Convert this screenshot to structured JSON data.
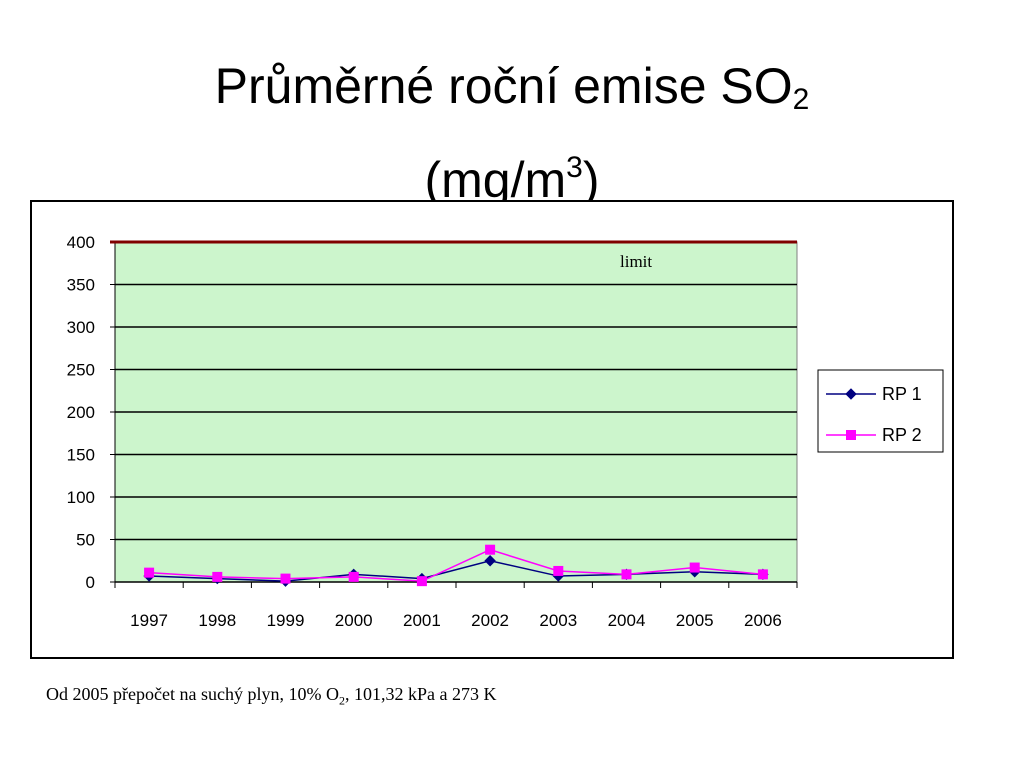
{
  "title": {
    "line1_main": "Průměrné roční emise SO",
    "line1_sub": "2",
    "line2_main": "(mg/m",
    "line2_sup": "3",
    "line2_end": ")"
  },
  "footnote": {
    "part1": "Od 2005 přepočet na suchý plyn, 10% O",
    "sub": "2",
    "part2": ", 101,32 kPa a 273 K"
  },
  "colors": {
    "plot_background": "#ccf5cc",
    "limit_line": "#800000",
    "rp1": "#000080",
    "rp2": "#ff00ff"
  },
  "chart_data": {
    "type": "line",
    "categories": [
      "1997",
      "1998",
      "1999",
      "2000",
      "2001",
      "2002",
      "2003",
      "2004",
      "2005",
      "2006"
    ],
    "series": [
      {
        "name": "RP 1",
        "marker": "diamond",
        "values": [
          7,
          4,
          1,
          9,
          4,
          25,
          7,
          9,
          12,
          9
        ]
      },
      {
        "name": "RP 2",
        "marker": "square",
        "values": [
          11,
          6,
          4,
          6,
          1,
          38,
          13,
          9,
          17,
          9
        ]
      }
    ],
    "limit": {
      "label": "limit",
      "value": 400
    },
    "y_ticks": [
      "0",
      "50",
      "100",
      "150",
      "200",
      "250",
      "300",
      "350",
      "400"
    ],
    "ylim": [
      0,
      400
    ],
    "grid": true,
    "legend": "right"
  }
}
